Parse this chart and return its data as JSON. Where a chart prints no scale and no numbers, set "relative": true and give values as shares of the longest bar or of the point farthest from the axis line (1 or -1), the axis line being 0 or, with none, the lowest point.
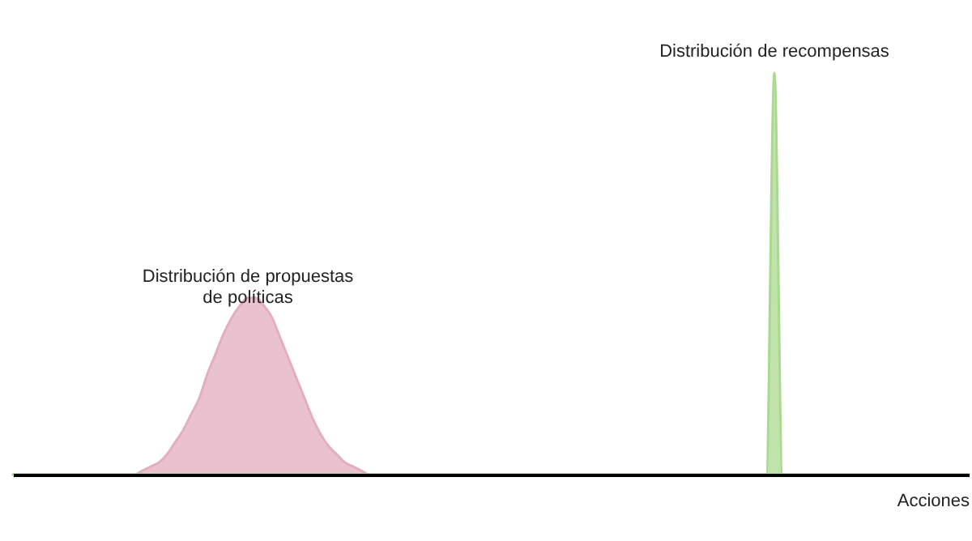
{
  "chart_data": {
    "type": "area",
    "relative": true,
    "xlabel": "Acciones",
    "categories": [
      null,
      null,
      null,
      null,
      null,
      null,
      null,
      null,
      null,
      null,
      null,
      null,
      null,
      null,
      null,
      null,
      null,
      null,
      null,
      null,
      null,
      null,
      null,
      null,
      null,
      null,
      null,
      null,
      null,
      null,
      null,
      null,
      null,
      null,
      null,
      null,
      null,
      null,
      null,
      null,
      null,
      null,
      null,
      null,
      null,
      null,
      null,
      null,
      null,
      null,
      null,
      null,
      null,
      null,
      null,
      null,
      null,
      null,
      null,
      null,
      null,
      null,
      null,
      null,
      null,
      null,
      null,
      null,
      null,
      null,
      null,
      null,
      null,
      null,
      null,
      null,
      null,
      null,
      null,
      null,
      null,
      null,
      null,
      null,
      null,
      null,
      null,
      null,
      null,
      null,
      null,
      null,
      null,
      null,
      null,
      null,
      null,
      null,
      null,
      null,
      null,
      null,
      null,
      null,
      null,
      null,
      null,
      null,
      null,
      null,
      null,
      null,
      null,
      null,
      null,
      null,
      null,
      null,
      null
    ],
    "series": [
      {
        "name": "Distribución de propuestas\nde políticas",
        "color": "#e3aebf",
        "values": [
          0,
          0,
          0,
          0,
          0,
          0,
          0,
          0,
          0,
          0,
          0,
          0,
          0,
          0,
          0,
          0,
          0.01,
          0.02,
          0.03,
          0.05,
          0.08,
          0.11,
          0.15,
          0.19,
          0.25,
          0.3,
          0.35,
          0.39,
          0.42,
          0.44,
          0.44,
          0.42,
          0.39,
          0.34,
          0.29,
          0.24,
          0.19,
          0.14,
          0.1,
          0.07,
          0.05,
          0.03,
          0.02,
          0.01,
          0,
          0,
          0,
          0,
          0,
          0,
          0,
          0,
          0,
          0,
          0,
          0,
          0,
          0,
          0,
          0,
          0,
          0,
          0,
          0,
          0,
          0,
          0,
          0,
          0,
          0,
          0,
          0,
          0,
          0,
          0,
          0,
          0,
          0,
          0,
          0,
          0,
          0,
          0,
          0,
          0,
          0,
          0,
          0,
          0,
          0,
          0,
          0,
          0,
          0,
          0,
          0,
          0,
          0,
          0,
          0,
          0,
          0,
          0,
          0,
          0,
          0,
          0,
          0,
          0,
          0,
          0,
          0,
          0,
          0,
          0,
          0,
          0,
          0,
          0
        ]
      },
      {
        "name": "Distribución de recompensas",
        "color": "#a9d98f",
        "values": [
          0,
          0,
          0,
          0,
          0,
          0,
          0,
          0,
          0,
          0,
          0,
          0,
          0,
          0,
          0,
          0,
          0,
          0,
          0,
          0,
          0,
          0,
          0,
          0,
          0,
          0,
          0,
          0,
          0,
          0,
          0,
          0,
          0,
          0,
          0,
          0,
          0,
          0,
          0,
          0,
          0,
          0,
          0,
          0,
          0,
          0,
          0,
          0,
          0,
          0,
          0,
          0,
          0,
          0,
          0,
          0,
          0,
          0,
          0,
          0,
          0,
          0,
          0,
          0,
          0,
          0,
          0,
          0,
          0,
          0,
          0,
          0,
          0,
          0,
          0,
          0,
          0,
          0,
          0,
          0,
          0,
          0,
          0,
          0,
          0,
          0,
          0,
          0,
          0,
          0,
          0,
          0,
          0,
          0,
          1,
          0,
          0,
          0,
          0,
          0,
          0,
          0,
          0,
          0,
          0,
          0,
          0,
          0,
          0,
          0,
          0,
          0,
          0,
          0,
          0,
          0,
          0,
          0,
          0
        ]
      }
    ]
  }
}
